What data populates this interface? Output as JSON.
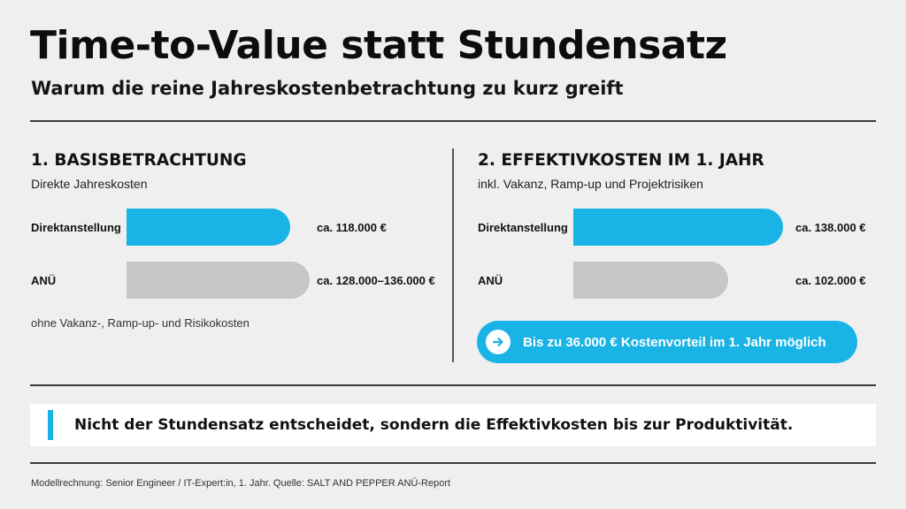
{
  "header": {
    "title": "Time-to-Value statt Stundensatz",
    "subtitle": "Warum die reine Jahreskostenbetrachtung zu kurz greift"
  },
  "colors": {
    "accent": "#1ab3e5",
    "neutral_bar": "#c6c6c6",
    "background": "#efefef"
  },
  "chart_data": [
    {
      "type": "bar",
      "orientation": "horizontal",
      "title": "1. BASISBETRACHTUNG",
      "subtitle": "Direkte Jahreskosten",
      "categories": [
        "Direktanstellung",
        "ANÜ"
      ],
      "values": [
        118000,
        132000
      ],
      "value_labels": [
        "ca. 118.000 €",
        "ca. 128.000–136.000 €"
      ],
      "value_ranges": [
        null,
        [
          128000,
          136000
        ]
      ],
      "series_colors": [
        "#1ab3e5",
        "#c6c6c6"
      ],
      "unit": "€",
      "note": "ohne Vakanz-, Ramp-up- und Risikokosten"
    },
    {
      "type": "bar",
      "orientation": "horizontal",
      "title": "2. EFFEKTIVKOSTEN IM 1. JAHR",
      "subtitle": "inkl. Vakanz, Ramp-up und Projektrisiken",
      "categories": [
        "Direktanstellung",
        "ANÜ"
      ],
      "values": [
        138000,
        102000
      ],
      "value_labels": [
        "ca. 138.000 €",
        "ca. 102.000 €"
      ],
      "series_colors": [
        "#1ab3e5",
        "#c6c6c6"
      ],
      "unit": "€",
      "callout": "Bis zu 36.000 € Kostenvorteil im 1. Jahr möglich"
    }
  ],
  "icons": {
    "callout_icon": "arrow-right-icon"
  },
  "summary": "Nicht der Stundensatz entscheidet, sondern die Effektivkosten bis zur Produktivität.",
  "footer": "Modellrechnung: Senior Engineer / IT-Expert:in, 1. Jahr. Quelle: SALT AND PEPPER ANÜ-Report"
}
